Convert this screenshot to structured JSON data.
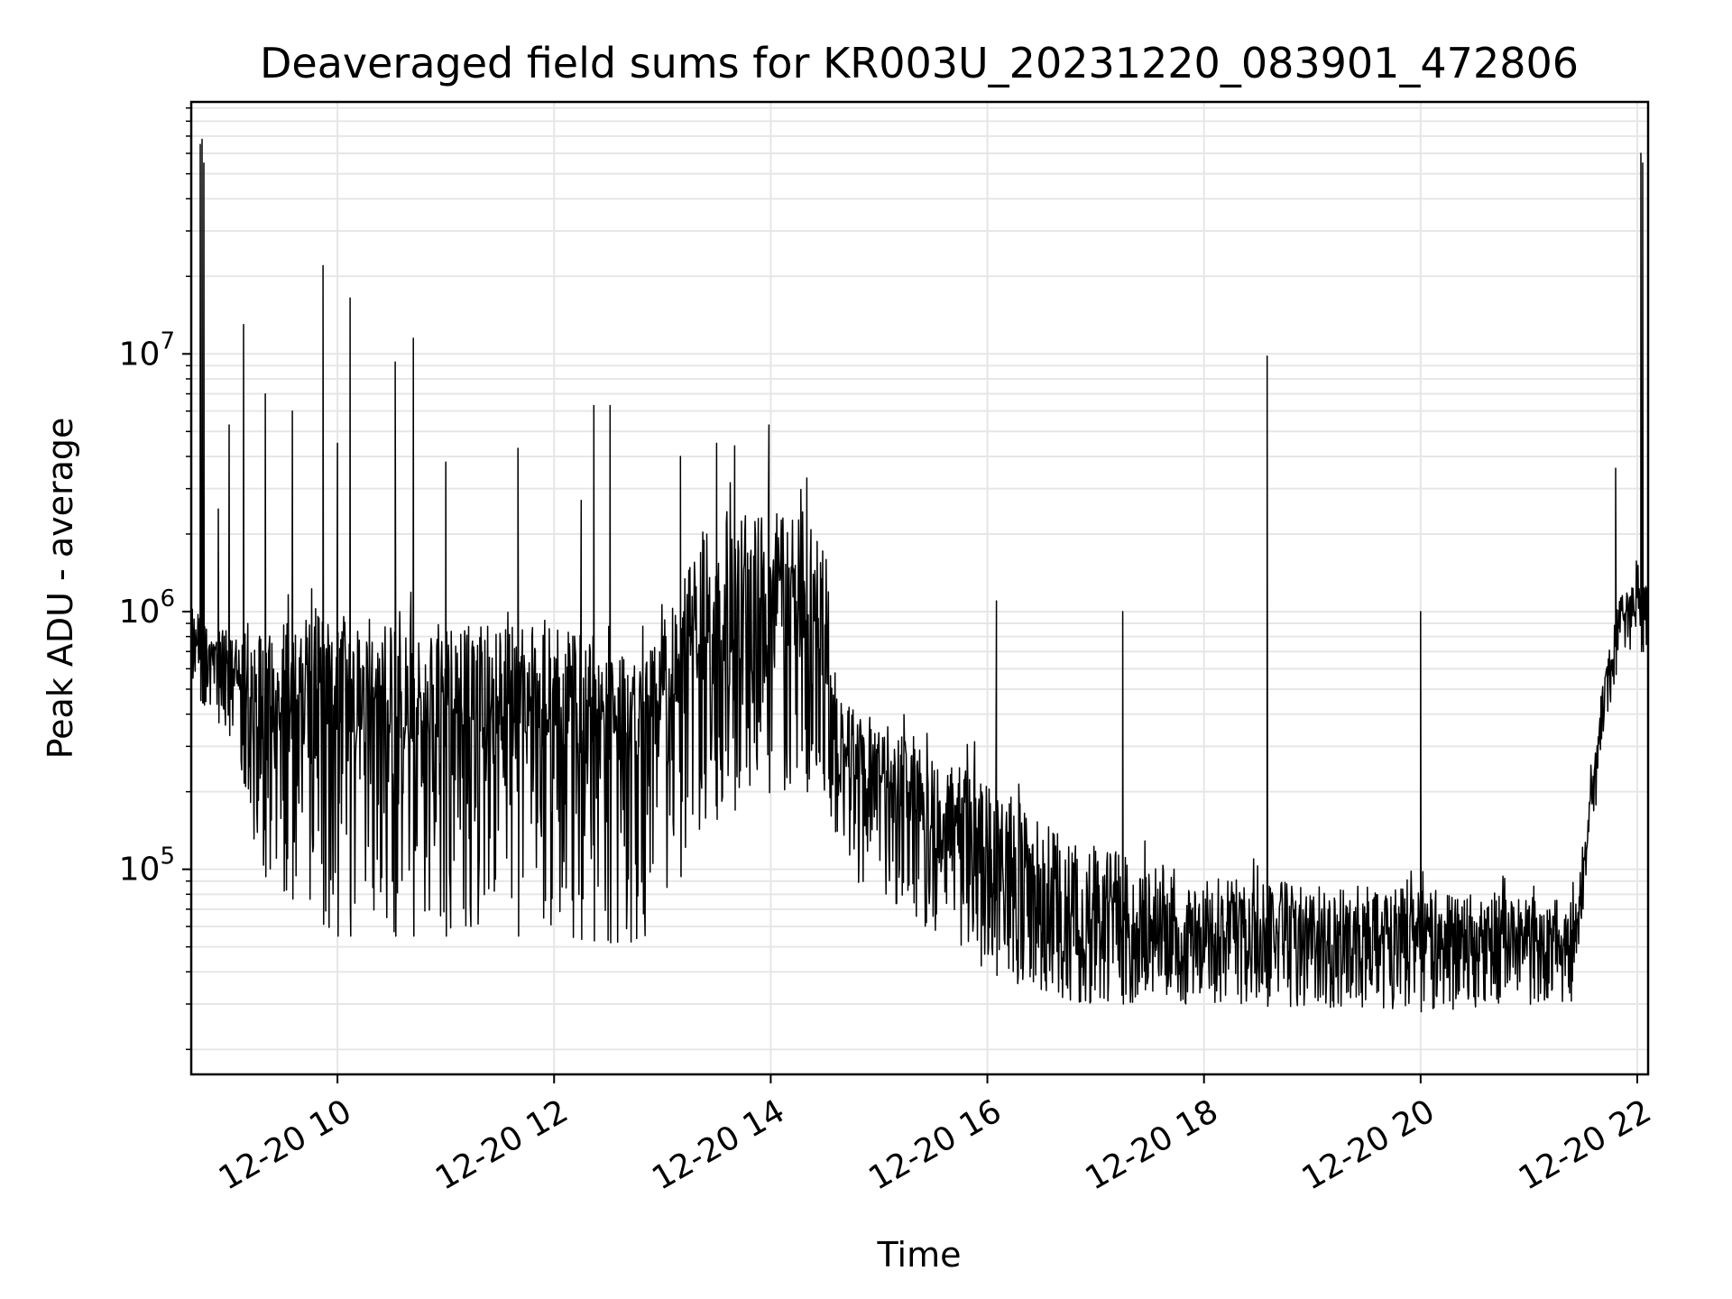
{
  "chart_data": {
    "type": "line",
    "title": "Deaveraged field sums for KR003U_20231220_083901_472806",
    "xlabel": "Time",
    "ylabel": "Peak ADU - average",
    "yscale": "log",
    "grid": true,
    "line_color": "#000000",
    "grid_color": "#e6e6e6",
    "xlim": [
      "2023-12-20 08:39",
      "2023-12-20 22:06"
    ],
    "ylim": [
      16000,
      95000000
    ],
    "x_ticks": [
      {
        "time": "2023-12-20 10:00",
        "label": "12-20 10"
      },
      {
        "time": "2023-12-20 12:00",
        "label": "12-20 12"
      },
      {
        "time": "2023-12-20 14:00",
        "label": "12-20 14"
      },
      {
        "time": "2023-12-20 16:00",
        "label": "12-20 16"
      },
      {
        "time": "2023-12-20 18:00",
        "label": "12-20 18"
      },
      {
        "time": "2023-12-20 20:00",
        "label": "12-20 20"
      },
      {
        "time": "2023-12-20 22:00",
        "label": "12-20 22"
      }
    ],
    "y_ticks": [
      {
        "value": 100000,
        "base": "10",
        "exp": "5"
      },
      {
        "value": 1000000,
        "base": "10",
        "exp": "6"
      },
      {
        "value": 10000000,
        "base": "10",
        "exp": "7"
      }
    ],
    "series": [
      {
        "regime_profile": [
          {
            "time": "2023-12-20 08:39",
            "baseline": 700000,
            "floor": 500000,
            "top": 1100000
          },
          {
            "time": "2023-12-20 08:50",
            "baseline": 600000,
            "floor": 400000,
            "top": 900000
          },
          {
            "time": "2023-12-20 09:05",
            "baseline": 500000,
            "floor": 300000,
            "top": 900000
          },
          {
            "time": "2023-12-20 09:15",
            "baseline": 300000,
            "floor": 100000,
            "top": 1000000
          },
          {
            "time": "2023-12-20 10:00",
            "baseline": 350000,
            "floor": 55000,
            "top": 1100000
          },
          {
            "time": "2023-12-20 11:00",
            "baseline": 300000,
            "floor": 55000,
            "top": 1000000
          },
          {
            "time": "2023-12-20 12:00",
            "baseline": 300000,
            "floor": 55000,
            "top": 1000000
          },
          {
            "time": "2023-12-20 12:50",
            "baseline": 250000,
            "floor": 50000,
            "top": 800000
          },
          {
            "time": "2023-12-20 13:25",
            "baseline": 500000,
            "floor": 150000,
            "top": 2500000
          },
          {
            "time": "2023-12-20 14:00",
            "baseline": 700000,
            "floor": 200000,
            "top": 3000000
          },
          {
            "time": "2023-12-20 14:30",
            "baseline": 600000,
            "floor": 200000,
            "top": 2500000
          },
          {
            "time": "2023-12-20 14:35",
            "baseline": 250000,
            "floor": 100000,
            "top": 500000
          },
          {
            "time": "2023-12-20 15:00",
            "baseline": 200000,
            "floor": 80000,
            "top": 400000
          },
          {
            "time": "2023-12-20 16:00",
            "baseline": 80000,
            "floor": 40000,
            "top": 250000
          },
          {
            "time": "2023-12-20 16:45",
            "baseline": 50000,
            "floor": 30000,
            "top": 150000
          },
          {
            "time": "2023-12-20 18:00",
            "baseline": 45000,
            "floor": 30000,
            "top": 100000
          },
          {
            "time": "2023-12-20 20:00",
            "baseline": 45000,
            "floor": 28000,
            "top": 90000
          },
          {
            "time": "2023-12-20 21:25",
            "baseline": 45000,
            "floor": 30000,
            "top": 80000
          },
          {
            "time": "2023-12-20 21:30",
            "baseline": 90000,
            "floor": 70000,
            "top": 120000
          },
          {
            "time": "2023-12-20 21:40",
            "baseline": 350000,
            "floor": 250000,
            "top": 500000
          },
          {
            "time": "2023-12-20 21:50",
            "baseline": 900000,
            "floor": 700000,
            "top": 1200000
          },
          {
            "time": "2023-12-20 22:06",
            "baseline": 1000000,
            "floor": 700000,
            "top": 1400000
          }
        ],
        "peaks": [
          {
            "time": "2023-12-20 08:44",
            "value": 65000000
          },
          {
            "time": "2023-12-20 08:45",
            "value": 68000000
          },
          {
            "time": "2023-12-20 08:46",
            "value": 55000000
          },
          {
            "time": "2023-12-20 08:54",
            "value": 2500000
          },
          {
            "time": "2023-12-20 09:00",
            "value": 5300000
          },
          {
            "time": "2023-12-20 09:08",
            "value": 13000000
          },
          {
            "time": "2023-12-20 09:20",
            "value": 7000000
          },
          {
            "time": "2023-12-20 09:35",
            "value": 6000000
          },
          {
            "time": "2023-12-20 09:52",
            "value": 22000000
          },
          {
            "time": "2023-12-20 10:07",
            "value": 16500000
          },
          {
            "time": "2023-12-20 10:32",
            "value": 9300000
          },
          {
            "time": "2023-12-20 10:42",
            "value": 11500000
          },
          {
            "time": "2023-12-20 10:00",
            "value": 4500000
          },
          {
            "time": "2023-12-20 11:00",
            "value": 3800000
          },
          {
            "time": "2023-12-20 11:40",
            "value": 4300000
          },
          {
            "time": "2023-12-20 12:15",
            "value": 2700000
          },
          {
            "time": "2023-12-20 12:22",
            "value": 6300000
          },
          {
            "time": "2023-12-20 12:31",
            "value": 6300000
          },
          {
            "time": "2023-12-20 13:10",
            "value": 4000000
          },
          {
            "time": "2023-12-20 13:30",
            "value": 4500000
          },
          {
            "time": "2023-12-20 13:40",
            "value": 4400000
          },
          {
            "time": "2023-12-20 13:59",
            "value": 5300000
          },
          {
            "time": "2023-12-20 14:20",
            "value": 3300000
          },
          {
            "time": "2023-12-20 16:05",
            "value": 1100000
          },
          {
            "time": "2023-12-20 17:15",
            "value": 1000000
          },
          {
            "time": "2023-12-20 18:35",
            "value": 9800000
          },
          {
            "time": "2023-12-20 20:00",
            "value": 1000000
          },
          {
            "time": "2023-12-20 21:48",
            "value": 3600000
          },
          {
            "time": "2023-12-20 22:02",
            "value": 60000000
          },
          {
            "time": "2023-12-20 22:03",
            "value": 55000000
          }
        ]
      }
    ]
  }
}
